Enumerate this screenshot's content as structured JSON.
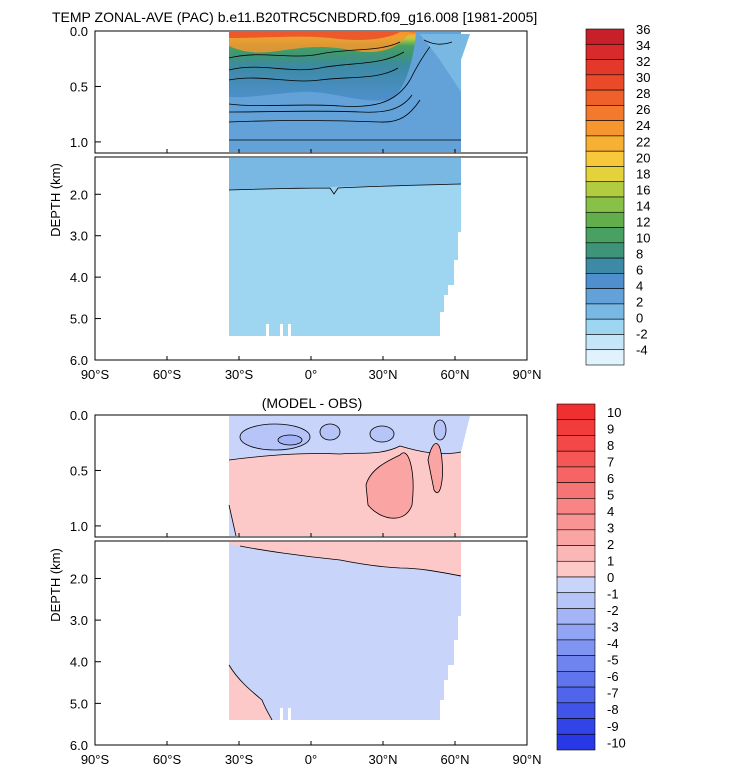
{
  "chart_data": [
    {
      "type": "contour",
      "title": "TEMP ZONAL-AVE (PAC) b.e11.B20TRC5CNBDRD.f09_g16.008 [1981-2005]",
      "xlabel": "",
      "ylabel": "DEPTH (km)",
      "x_ticks": [
        "90°S",
        "60°S",
        "30°S",
        "0°",
        "30°N",
        "60°N",
        "90°N"
      ],
      "y_ticks_upper": [
        "0.0",
        "0.5",
        "1.0"
      ],
      "y_ticks_lower": [
        "2.0",
        "3.0",
        "4.0",
        "5.0",
        "6.0"
      ],
      "xlim": [
        -90,
        90
      ],
      "ylim_upper_km": [
        0,
        1.1
      ],
      "ylim_lower_km": [
        1.1,
        6.0
      ],
      "data_lat_range": [
        -34,
        62
      ],
      "colorbar": {
        "labels": [
          "36",
          "34",
          "32",
          "30",
          "28",
          "26",
          "24",
          "22",
          "20",
          "18",
          "16",
          "14",
          "12",
          "10",
          "8",
          "6",
          "4",
          "2",
          "0",
          "-2",
          "-4"
        ],
        "colors": [
          "#c8202a",
          "#d82a2a",
          "#e4382a",
          "#ea4a2a",
          "#f0602a",
          "#f37a2c",
          "#f6962e",
          "#f8b034",
          "#f6c83a",
          "#e4d23c",
          "#b2cc40",
          "#88c048",
          "#62ae4c",
          "#48a062",
          "#3e9478",
          "#3c8aa4",
          "#4f8fce",
          "#62a2d8",
          "#7ab8e4",
          "#9ed6f2",
          "#c4e6f8",
          "#e0f2fc"
        ]
      }
    },
    {
      "type": "contour",
      "title": "(MODEL - OBS)",
      "xlabel": "",
      "ylabel": "DEPTH (km)",
      "x_ticks": [
        "90°S",
        "60°S",
        "30°S",
        "0°",
        "30°N",
        "60°N",
        "90°N"
      ],
      "y_ticks_upper": [
        "0.0",
        "0.5",
        "1.0"
      ],
      "y_ticks_lower": [
        "2.0",
        "3.0",
        "4.0",
        "5.0",
        "6.0"
      ],
      "xlim": [
        -90,
        90
      ],
      "ylim_upper_km": [
        0,
        1.1
      ],
      "ylim_lower_km": [
        1.1,
        6.0
      ],
      "data_lat_range": [
        -34,
        62
      ],
      "colorbar": {
        "labels": [
          "10",
          "9",
          "8",
          "7",
          "6",
          "5",
          "4",
          "3",
          "2",
          "1",
          "0",
          "-1",
          "-2",
          "-3",
          "-4",
          "-5",
          "-6",
          "-7",
          "-8",
          "-9",
          "-10"
        ],
        "colors": [
          "#f03030",
          "#f23c3c",
          "#f44848",
          "#f55656",
          "#f66464",
          "#f77474",
          "#f88484",
          "#f99494",
          "#faa4a4",
          "#fbb6b6",
          "#fcc8c8",
          "#c8d4fa",
          "#b6c4f8",
          "#a4b4f6",
          "#92a4f4",
          "#8094f2",
          "#7084f0",
          "#6074ee",
          "#5064ec",
          "#4054ea",
          "#3044e8",
          "#2838e6"
        ]
      }
    }
  ]
}
